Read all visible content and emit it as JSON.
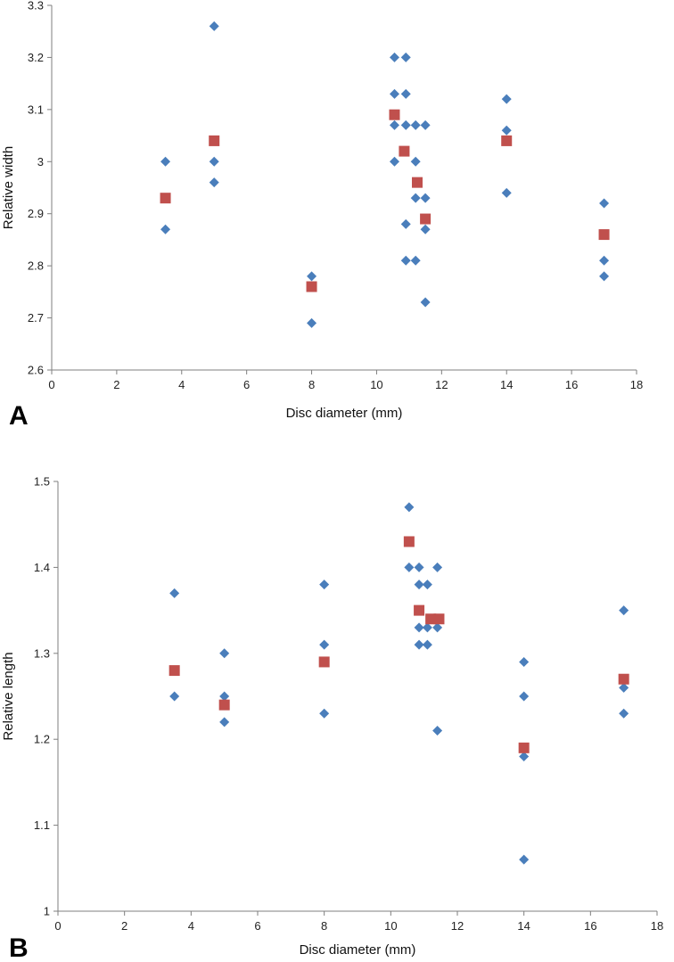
{
  "colors": {
    "individual": "#4a7ebb",
    "mean": "#c0504d",
    "axis": "#7f7f7f"
  },
  "chart_data": [
    {
      "type": "scatter",
      "panel_label": "A",
      "title": "",
      "xlabel": "Disc diameter (mm)",
      "ylabel": "Relative width",
      "xlim": [
        0,
        18
      ],
      "ylim": [
        2.6,
        3.3
      ],
      "x_ticks": [
        "0",
        "2",
        "4",
        "6",
        "8",
        "10",
        "12",
        "14",
        "16",
        "18"
      ],
      "y_ticks": [
        "2.6",
        "2.7",
        "2.8",
        "2.9",
        "3",
        "3.1",
        "3.2",
        "3.3"
      ],
      "grid": false,
      "series": [
        {
          "marker": "diamond",
          "points": [
            [
              3.5,
              3.0
            ],
            [
              3.5,
              2.87
            ],
            [
              5,
              3.26
            ],
            [
              5,
              3.0
            ],
            [
              5,
              2.96
            ],
            [
              8,
              2.78
            ],
            [
              8,
              2.69
            ],
            [
              10.55,
              3.2
            ],
            [
              10.55,
              3.13
            ],
            [
              10.55,
              3.07
            ],
            [
              10.55,
              3.0
            ],
            [
              10.9,
              3.2
            ],
            [
              10.9,
              3.13
            ],
            [
              10.9,
              3.07
            ],
            [
              10.9,
              2.88
            ],
            [
              10.9,
              2.81
            ],
            [
              11.2,
              3.07
            ],
            [
              11.2,
              3.0
            ],
            [
              11.2,
              2.93
            ],
            [
              11.2,
              2.81
            ],
            [
              11.5,
              3.07
            ],
            [
              11.5,
              2.93
            ],
            [
              11.5,
              2.87
            ],
            [
              11.5,
              2.73
            ],
            [
              14,
              3.12
            ],
            [
              14,
              3.06
            ],
            [
              14,
              2.94
            ],
            [
              17,
              2.92
            ],
            [
              17,
              2.81
            ],
            [
              17,
              2.78
            ]
          ]
        },
        {
          "marker": "square",
          "points": [
            [
              3.5,
              2.93
            ],
            [
              5,
              3.04
            ],
            [
              8,
              2.76
            ],
            [
              10.55,
              3.09
            ],
            [
              10.85,
              3.02
            ],
            [
              11.25,
              2.96
            ],
            [
              11.5,
              2.89
            ],
            [
              14,
              3.04
            ],
            [
              17,
              2.86
            ]
          ]
        }
      ]
    },
    {
      "type": "scatter",
      "panel_label": "B",
      "title": "",
      "xlabel": "Disc diameter (mm)",
      "ylabel": "Relative length",
      "xlim": [
        0,
        18
      ],
      "ylim": [
        1.0,
        1.5
      ],
      "x_ticks": [
        "0",
        "2",
        "4",
        "6",
        "8",
        "10",
        "12",
        "14",
        "16",
        "18"
      ],
      "y_ticks": [
        "1",
        "1.1",
        "1.2",
        "1.3",
        "1.4",
        "1.5"
      ],
      "grid": false,
      "series": [
        {
          "marker": "diamond",
          "points": [
            [
              3.5,
              1.37
            ],
            [
              3.5,
              1.25
            ],
            [
              5,
              1.3
            ],
            [
              5,
              1.25
            ],
            [
              5,
              1.22
            ],
            [
              8,
              1.38
            ],
            [
              8,
              1.31
            ],
            [
              8,
              1.23
            ],
            [
              10.55,
              1.47
            ],
            [
              10.55,
              1.4
            ],
            [
              10.85,
              1.4
            ],
            [
              10.85,
              1.38
            ],
            [
              10.85,
              1.33
            ],
            [
              10.85,
              1.31
            ],
            [
              11.1,
              1.38
            ],
            [
              11.1,
              1.33
            ],
            [
              11.1,
              1.31
            ],
            [
              11.4,
              1.4
            ],
            [
              11.4,
              1.33
            ],
            [
              11.4,
              1.21
            ],
            [
              14,
              1.29
            ],
            [
              14,
              1.25
            ],
            [
              14,
              1.18
            ],
            [
              14,
              1.06
            ],
            [
              17,
              1.35
            ],
            [
              17,
              1.26
            ],
            [
              17,
              1.23
            ]
          ]
        },
        {
          "marker": "square",
          "points": [
            [
              3.5,
              1.28
            ],
            [
              5,
              1.24
            ],
            [
              8,
              1.29
            ],
            [
              10.55,
              1.43
            ],
            [
              10.85,
              1.35
            ],
            [
              11.2,
              1.34
            ],
            [
              11.45,
              1.34
            ],
            [
              14,
              1.19
            ],
            [
              17,
              1.27
            ]
          ]
        }
      ]
    }
  ]
}
